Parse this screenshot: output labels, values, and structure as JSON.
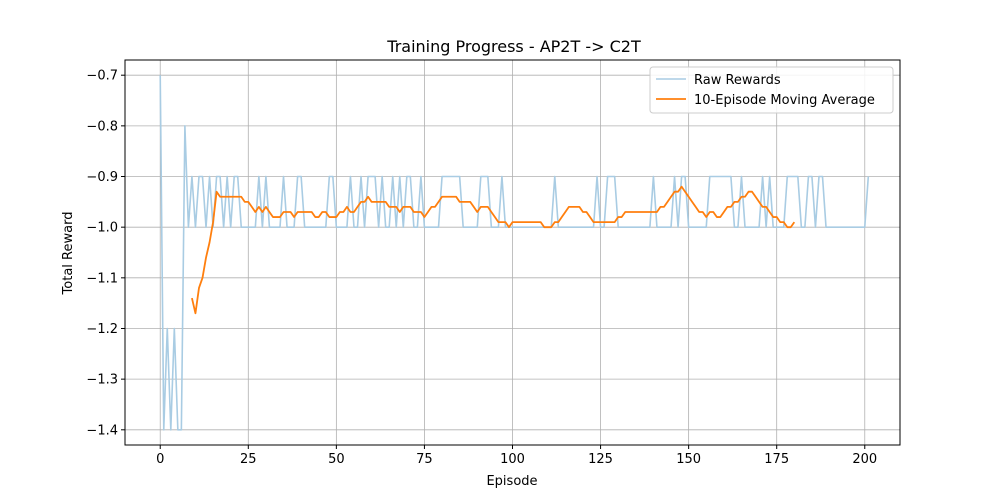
{
  "chart_data": {
    "type": "line",
    "title": "Training Progress - AP2T -> C2T",
    "xlabel": "Episode",
    "ylabel": "Total Reward",
    "xlim": [
      -10,
      210
    ],
    "ylim": [
      -1.43,
      -0.67
    ],
    "xticks": [
      0,
      25,
      50,
      75,
      100,
      125,
      150,
      175,
      200
    ],
    "yticks": [
      -0.7,
      -0.8,
      -0.9,
      -1.0,
      -1.1,
      -1.2,
      -1.3,
      -1.4
    ],
    "grid": true,
    "legend_position": "top-right",
    "series": [
      {
        "name": "Raw Rewards",
        "color": "#a9cce3",
        "x_start": 0,
        "values": [
          -0.7,
          -1.4,
          -1.2,
          -1.4,
          -1.2,
          -1.4,
          -1.4,
          -0.8,
          -1.0,
          -0.9,
          -1.0,
          -0.9,
          -0.9,
          -1.0,
          -0.9,
          -1.0,
          -0.9,
          -0.9,
          -1.0,
          -0.9,
          -1.0,
          -0.9,
          -0.9,
          -1.0,
          -1.0,
          -1.0,
          -1.0,
          -1.0,
          -0.9,
          -1.0,
          -0.9,
          -1.0,
          -1.0,
          -1.0,
          -1.0,
          -0.9,
          -1.0,
          -1.0,
          -1.0,
          -0.9,
          -0.9,
          -1.0,
          -1.0,
          -1.0,
          -1.0,
          -1.0,
          -1.0,
          -1.0,
          -0.9,
          -0.9,
          -1.0,
          -1.0,
          -1.0,
          -1.0,
          -0.9,
          -1.0,
          -1.0,
          -0.9,
          -1.0,
          -0.9,
          -0.9,
          -0.9,
          -1.0,
          -0.9,
          -1.0,
          -1.0,
          -0.9,
          -1.0,
          -0.9,
          -1.0,
          -0.9,
          -0.9,
          -1.0,
          -1.0,
          -0.9,
          -1.0,
          -1.0,
          -1.0,
          -1.0,
          -1.0,
          -0.9,
          -0.9,
          -0.9,
          -0.9,
          -0.9,
          -0.9,
          -1.0,
          -1.0,
          -1.0,
          -1.0,
          -1.0,
          -0.9,
          -0.9,
          -0.9,
          -1.0,
          -1.0,
          -1.0,
          -0.9,
          -1.0,
          -1.0,
          -1.0,
          -1.0,
          -1.0,
          -1.0,
          -1.0,
          -1.0,
          -1.0,
          -1.0,
          -1.0,
          -1.0,
          -1.0,
          -1.0,
          -0.9,
          -1.0,
          -1.0,
          -1.0,
          -1.0,
          -1.0,
          -1.0,
          -1.0,
          -1.0,
          -1.0,
          -1.0,
          -1.0,
          -0.9,
          -1.0,
          -1.0,
          -0.9,
          -0.9,
          -0.9,
          -1.0,
          -1.0,
          -1.0,
          -1.0,
          -1.0,
          -1.0,
          -1.0,
          -1.0,
          -1.0,
          -1.0,
          -0.9,
          -1.0,
          -1.0,
          -1.0,
          -1.0,
          -1.0,
          -0.9,
          -1.0,
          -0.9,
          -0.9,
          -1.0,
          -1.0,
          -1.0,
          -1.0,
          -1.0,
          -1.0,
          -0.9,
          -0.9,
          -0.9,
          -0.9,
          -0.9,
          -0.9,
          -0.9,
          -1.0,
          -1.0,
          -0.9,
          -1.0,
          -1.0,
          -1.0,
          -1.0,
          -1.0,
          -0.9,
          -1.0,
          -0.9,
          -1.0,
          -1.0,
          -1.0,
          -1.0,
          -0.9,
          -0.9,
          -0.9,
          -0.9,
          -1.0,
          -1.0,
          -0.9,
          -0.9,
          -1.0,
          -0.9,
          -0.9,
          -1.0,
          -1.0,
          -1.0,
          -1.0,
          -1.0,
          -1.0,
          -1.0,
          -1.0,
          -1.0,
          -1.0,
          -1.0,
          -1.0,
          -0.9
        ]
      },
      {
        "name": "10-Episode Moving Average",
        "color": "#ff7f0e",
        "x_start": 9,
        "values": [
          -1.14,
          -1.17,
          -1.12,
          -1.1,
          -1.06,
          -1.03,
          -0.99,
          -0.93,
          -0.94,
          -0.94,
          -0.94,
          -0.94,
          -0.94,
          -0.94,
          -0.94,
          -0.95,
          -0.95,
          -0.96,
          -0.97,
          -0.96,
          -0.97,
          -0.96,
          -0.97,
          -0.98,
          -0.98,
          -0.98,
          -0.97,
          -0.97,
          -0.97,
          -0.98,
          -0.97,
          -0.97,
          -0.97,
          -0.97,
          -0.97,
          -0.98,
          -0.98,
          -0.97,
          -0.97,
          -0.98,
          -0.98,
          -0.98,
          -0.97,
          -0.97,
          -0.96,
          -0.97,
          -0.97,
          -0.96,
          -0.95,
          -0.95,
          -0.94,
          -0.95,
          -0.95,
          -0.95,
          -0.95,
          -0.95,
          -0.96,
          -0.96,
          -0.96,
          -0.97,
          -0.96,
          -0.96,
          -0.96,
          -0.97,
          -0.97,
          -0.97,
          -0.98,
          -0.97,
          -0.96,
          -0.96,
          -0.95,
          -0.94,
          -0.94,
          -0.94,
          -0.94,
          -0.94,
          -0.95,
          -0.95,
          -0.95,
          -0.95,
          -0.96,
          -0.97,
          -0.96,
          -0.96,
          -0.96,
          -0.97,
          -0.98,
          -0.99,
          -0.99,
          -0.99,
          -1.0,
          -0.99,
          -0.99,
          -0.99,
          -0.99,
          -0.99,
          -0.99,
          -0.99,
          -0.99,
          -0.99,
          -1.0,
          -1.0,
          -1.0,
          -0.99,
          -0.99,
          -0.98,
          -0.97,
          -0.96,
          -0.96,
          -0.96,
          -0.96,
          -0.97,
          -0.97,
          -0.98,
          -0.99,
          -0.99,
          -0.99,
          -0.99,
          -0.99,
          -0.99,
          -0.99,
          -0.98,
          -0.98,
          -0.97,
          -0.97,
          -0.97,
          -0.97,
          -0.97,
          -0.97,
          -0.97,
          -0.97,
          -0.97,
          -0.97,
          -0.96,
          -0.96,
          -0.95,
          -0.94,
          -0.93,
          -0.93,
          -0.92,
          -0.93,
          -0.94,
          -0.95,
          -0.96,
          -0.97,
          -0.97,
          -0.98,
          -0.97,
          -0.97,
          -0.98,
          -0.98,
          -0.97,
          -0.96,
          -0.96,
          -0.95,
          -0.95,
          -0.94,
          -0.94,
          -0.93,
          -0.93,
          -0.94,
          -0.95,
          -0.96,
          -0.96,
          -0.97,
          -0.98,
          -0.98,
          -0.99,
          -0.99,
          -1.0,
          -1.0,
          -0.99
        ]
      }
    ]
  }
}
